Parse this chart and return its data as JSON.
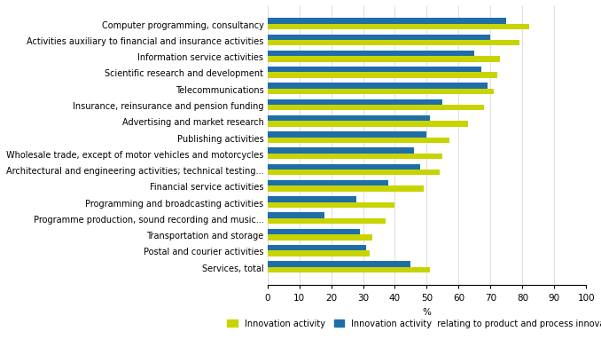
{
  "categories": [
    "Computer programming, consultancy",
    "Activities auxiliary to financial and insurance activities",
    "Information service activities",
    "Scientific research and development",
    "Telecommunications",
    "Insurance, reinsurance and pension funding",
    "Advertising and market research",
    "Publishing activities",
    "Wholesale trade, except of motor vehicles and motorcycles",
    "Architectural and engineering activities; technical testing...",
    "Financial service activities",
    "Programming and broadcasting activities",
    "Programme production, sound recording and music...",
    "Transportation and storage",
    "Postal and courier activities",
    "Services, total"
  ],
  "innovation_activity": [
    82,
    79,
    73,
    72,
    71,
    68,
    63,
    57,
    55,
    54,
    49,
    40,
    37,
    33,
    32,
    51
  ],
  "product_process": [
    75,
    70,
    65,
    67,
    69,
    55,
    51,
    50,
    46,
    48,
    38,
    28,
    18,
    29,
    31,
    45
  ],
  "color_innovation": "#c8d400",
  "color_product_process": "#1f6ea8",
  "xlabel": "%",
  "xlim": [
    0,
    100
  ],
  "xticks": [
    0,
    10,
    20,
    30,
    40,
    50,
    60,
    70,
    80,
    90,
    100
  ],
  "legend_labels": [
    "Innovation activity",
    "Innovation activity  relating to product and process innovations"
  ],
  "bar_height": 0.35,
  "background_color": "#ffffff",
  "label_fontsize": 7.0,
  "tick_fontsize": 7.5
}
